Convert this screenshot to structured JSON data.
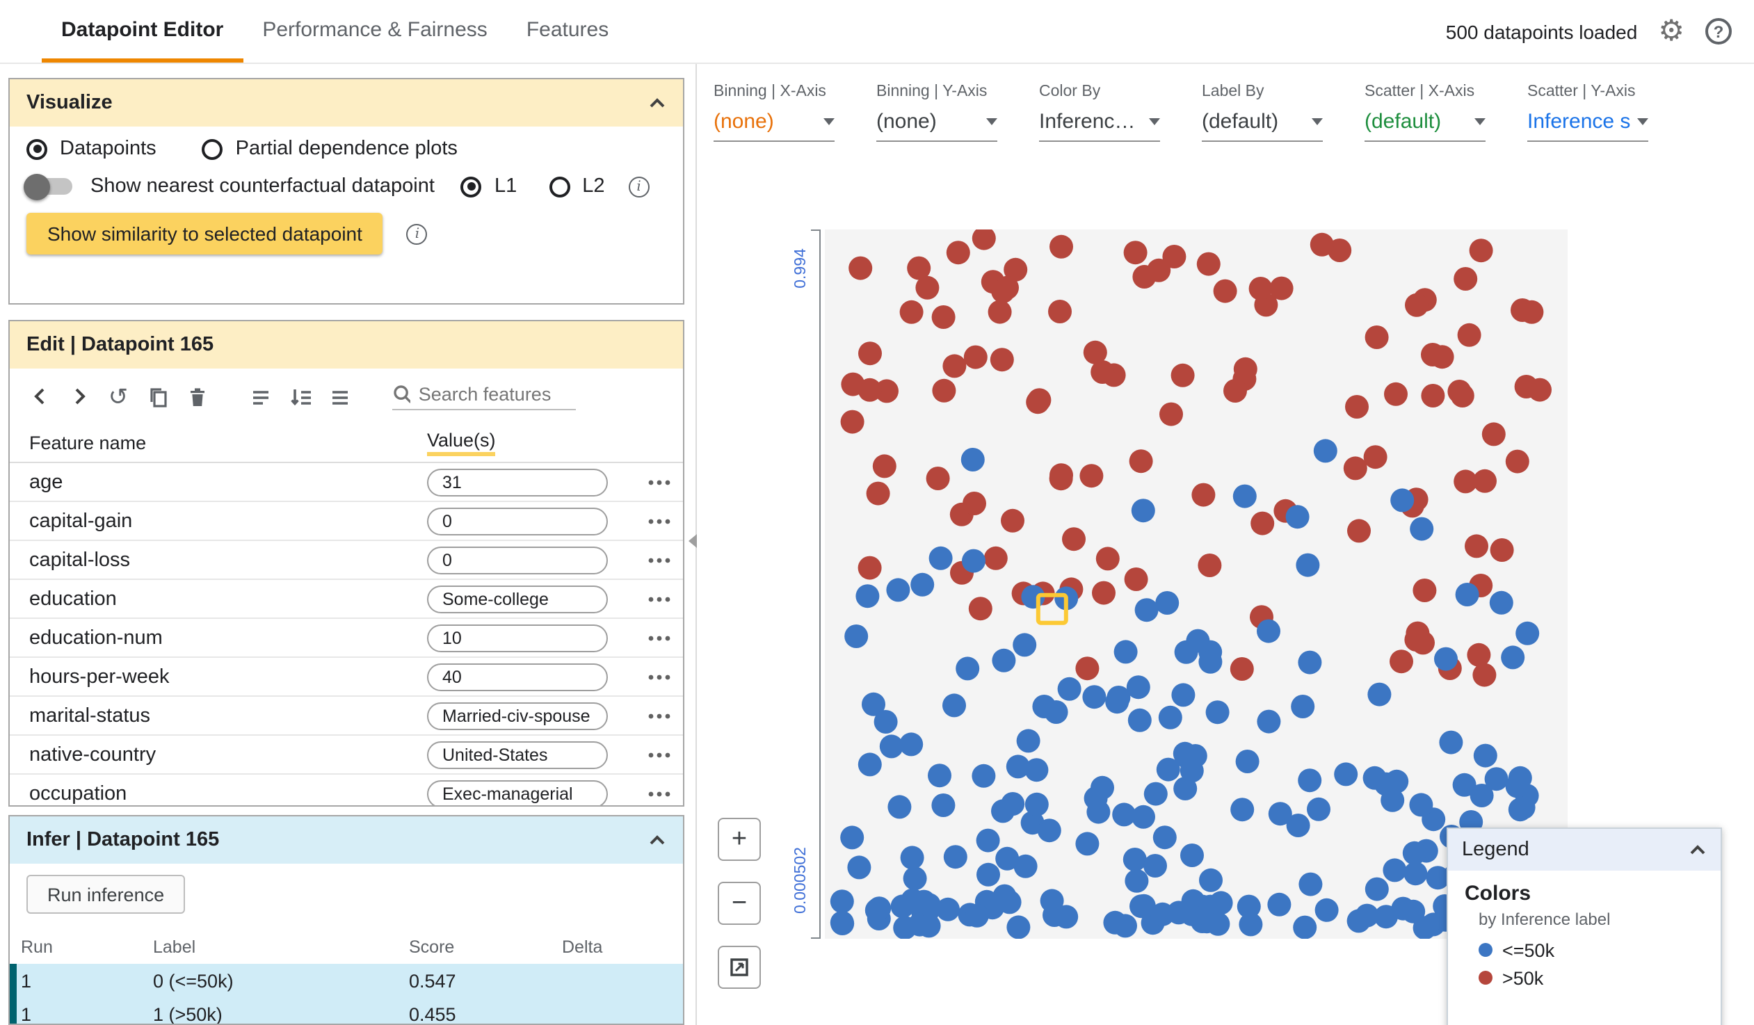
{
  "header": {
    "tabs": [
      {
        "label": "Datapoint Editor",
        "active": true
      },
      {
        "label": "Performance & Fairness",
        "active": false
      },
      {
        "label": "Features",
        "active": false
      }
    ],
    "status": "500 datapoints loaded"
  },
  "visualize": {
    "title": "Visualize",
    "datapoints_label": "Datapoints",
    "pdp_label": "Partial dependence plots",
    "counterfactual_label": "Show nearest counterfactual datapoint",
    "l1_label": "L1",
    "l2_label": "L2",
    "similarity_button": "Show similarity to selected datapoint"
  },
  "edit": {
    "title": "Edit | Datapoint 165",
    "search_placeholder": "Search features",
    "columns": [
      "Feature name",
      "Value(s)"
    ],
    "features": [
      {
        "name": "age",
        "value": "31"
      },
      {
        "name": "capital-gain",
        "value": "0"
      },
      {
        "name": "capital-loss",
        "value": "0"
      },
      {
        "name": "education",
        "value": "Some-college"
      },
      {
        "name": "education-num",
        "value": "10"
      },
      {
        "name": "hours-per-week",
        "value": "40"
      },
      {
        "name": "marital-status",
        "value": "Married-civ-spouse"
      },
      {
        "name": "native-country",
        "value": "United-States"
      },
      {
        "name": "occupation",
        "value": "Exec-managerial"
      }
    ]
  },
  "infer": {
    "title": "Infer | Datapoint 165",
    "run_button": "Run inference",
    "columns": [
      "Run",
      "Label",
      "Score",
      "Delta"
    ],
    "rows": [
      {
        "run": "1",
        "label": "0 (<=50k)",
        "score": "0.547",
        "delta": ""
      },
      {
        "run": "1",
        "label": "1 (>50k)",
        "score": "0.455",
        "delta": ""
      }
    ]
  },
  "controls": [
    {
      "label": "Binning | X-Axis",
      "value": "(none)",
      "color": "#e8710a"
    },
    {
      "label": "Binning | Y-Axis",
      "value": "(none)",
      "color": "#3c4043"
    },
    {
      "label": "Color By",
      "value": "Inferenc…",
      "color": "#3c4043"
    },
    {
      "label": "Label By",
      "value": "(default)",
      "color": "#3c4043"
    },
    {
      "label": "Scatter | X-Axis",
      "value": "(default)",
      "color": "#1e8e3e"
    },
    {
      "label": "Scatter | Y-Axis",
      "value": "Inference s…",
      "color": "#1a73e8"
    }
  ],
  "plot_toolbar": {
    "zoom_in": "+",
    "zoom_out": "−"
  },
  "chart_data": {
    "type": "scatter",
    "y_axis": {
      "label_top": "0.994",
      "label_bottom": "0.000502"
    },
    "x_axis": {
      "label": "(default)"
    },
    "legend": {
      "title": "Legend",
      "section": "Colors",
      "subtitle": "by Inference label",
      "entries": [
        {
          "label": "<=50k",
          "color": "#3c76c3"
        },
        {
          "label": ">50k",
          "color": "#b5463c"
        }
      ]
    },
    "seed": 20,
    "point_radius": 8.5,
    "series": [
      {
        "name": ">50k",
        "color": "#b5463c",
        "clusters": [
          {
            "count": 96,
            "y0": 0.012,
            "y1": 0.52,
            "bias": 1.35
          },
          {
            "count": 13,
            "y0": 0.5,
            "y1": 0.63,
            "bias": 1
          }
        ]
      },
      {
        "name": "<=50k",
        "color": "#3c76c3",
        "clusters": [
          {
            "count": 122,
            "y0": 0.47,
            "y1": 0.945,
            "bias": 0.62
          },
          {
            "count": 62,
            "y0": 0.945,
            "y1": 0.985,
            "bias": 1
          },
          {
            "count": 9,
            "y0": 0.3,
            "y1": 0.47,
            "bias": 1
          }
        ]
      }
    ],
    "selected_point": {
      "x_frac": 0.306,
      "y_frac": 0.535
    }
  }
}
